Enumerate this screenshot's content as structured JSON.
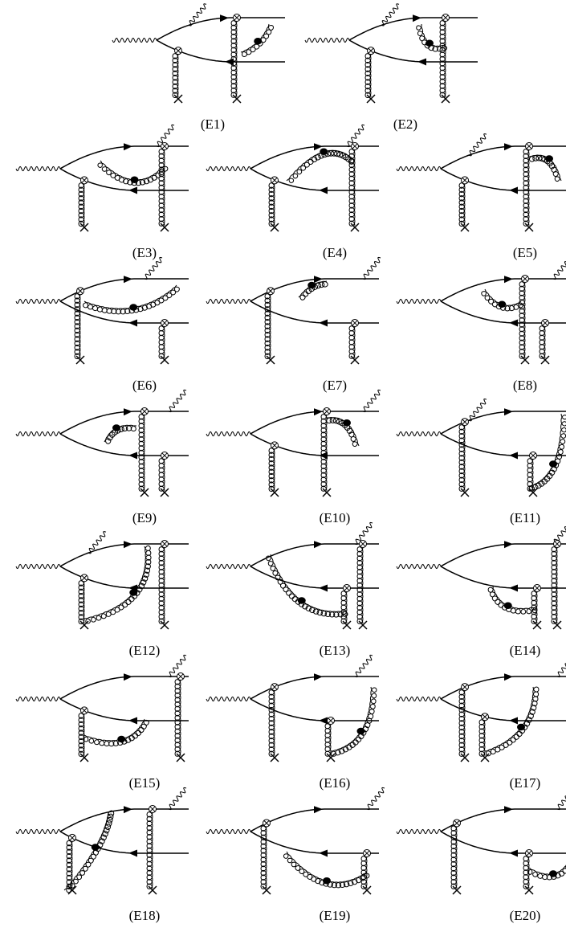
{
  "diagrams": [
    {
      "label": "(E1)"
    },
    {
      "label": "(E2)"
    },
    {
      "label": "(E3)"
    },
    {
      "label": "(E4)"
    },
    {
      "label": "(E5)"
    },
    {
      "label": "(E6)"
    },
    {
      "label": "(E7)"
    },
    {
      "label": "(E8)"
    },
    {
      "label": "(E9)"
    },
    {
      "label": "(E10)"
    },
    {
      "label": "(E11)"
    },
    {
      "label": "(E12)"
    },
    {
      "label": "(E13)"
    },
    {
      "label": "(E14)"
    },
    {
      "label": "(E15)"
    },
    {
      "label": "(E16)"
    },
    {
      "label": "(E17)"
    },
    {
      "label": "(E18)"
    },
    {
      "label": "(E19)"
    },
    {
      "label": "(E20)"
    }
  ]
}
